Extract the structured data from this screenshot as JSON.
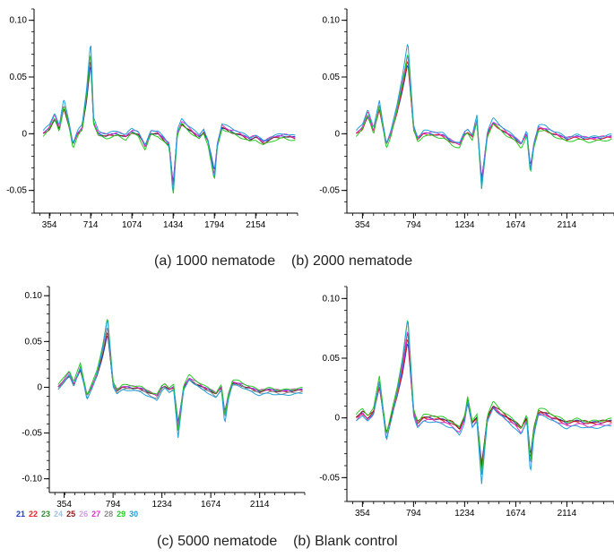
{
  "captions": {
    "top": "(a) 1000 nematode    (b) 2000 nematode",
    "bottom": "(c) 5000 nematode    (b) Blank control"
  },
  "legend": [
    {
      "label": "21",
      "color": "#1f3ccf"
    },
    {
      "label": "22",
      "color": "#e8222a"
    },
    {
      "label": "23",
      "color": "#2e8b2e"
    },
    {
      "label": "24",
      "color": "#9ec4e6"
    },
    {
      "label": "25",
      "color": "#8b1a1a"
    },
    {
      "label": "26",
      "color": "#d0a0e0"
    },
    {
      "label": "27",
      "color": "#e030d0"
    },
    {
      "label": "28",
      "color": "#8c8c8c"
    },
    {
      "label": "29",
      "color": "#22cc22"
    },
    {
      "label": "30",
      "color": "#20a0d8"
    }
  ],
  "chart_data": [
    {
      "type": "line",
      "panel": "a",
      "x_range": [
        220,
        2520
      ],
      "ylim": [
        -0.07,
        0.11
      ],
      "x_ticks": [
        "354",
        "714",
        "1074",
        "1434",
        "1794",
        "2154"
      ],
      "y_ticks": [
        "0.10",
        "0.05",
        "0",
        "-0.05"
      ],
      "y_tick_values": [
        0.1,
        0.05,
        0,
        -0.05
      ],
      "peaks": {
        "x": [
          300,
          354,
          400,
          440,
          480,
          520,
          560,
          600,
          640,
          680,
          714,
          740,
          780,
          850,
          950,
          1020,
          1074,
          1130,
          1190,
          1240,
          1300,
          1350,
          1400,
          1434,
          1470,
          1510,
          1560,
          1620,
          1660,
          1700,
          1740,
          1794,
          1820,
          1860,
          1920,
          2000,
          2100,
          2154,
          2220,
          2300,
          2400,
          2500
        ],
        "y": [
          0.0,
          0.005,
          0.015,
          0.004,
          0.025,
          0.01,
          -0.01,
          0.0,
          0.005,
          0.035,
          0.072,
          0.01,
          0.0,
          -0.002,
          0.0,
          -0.003,
          0.002,
          0.0,
          -0.012,
          0.001,
          0.0,
          -0.005,
          -0.01,
          -0.05,
          0.0,
          0.01,
          0.005,
          0.0,
          -0.003,
          0.002,
          -0.008,
          -0.038,
          -0.01,
          0.006,
          0.003,
          0.0,
          -0.005,
          -0.003,
          -0.008,
          -0.004,
          -0.002,
          -0.004
        ]
      },
      "series": [
        {
          "label": "21",
          "color": "#1f3ccf"
        },
        {
          "label": "25",
          "color": "#8b1a1a"
        },
        {
          "label": "27",
          "color": "#e030d0"
        },
        {
          "label": "29",
          "color": "#22cc22"
        },
        {
          "label": "30",
          "color": "#20a0d8"
        }
      ]
    },
    {
      "type": "line",
      "panel": "b",
      "x_range": [
        220,
        2520
      ],
      "ylim": [
        -0.07,
        0.11
      ],
      "x_ticks": [
        "354",
        "794",
        "1234",
        "1674",
        "2114"
      ],
      "y_ticks": [
        "0.10",
        "0.05",
        "0",
        "-0.05"
      ],
      "y_tick_values": [
        0.1,
        0.05,
        0,
        -0.05
      ],
      "peaks": {
        "x": [
          300,
          354,
          400,
          450,
          500,
          560,
          600,
          650,
          700,
          745,
          794,
          830,
          880,
          950,
          1050,
          1130,
          1190,
          1234,
          1260,
          1300,
          1340,
          1380,
          1430,
          1480,
          1540,
          1600,
          1674,
          1720,
          1770,
          1800,
          1830,
          1870,
          1930,
          2000,
          2114,
          2200,
          2300,
          2420,
          2500
        ],
        "y": [
          0.0,
          0.005,
          0.018,
          0.002,
          0.024,
          -0.01,
          0.0,
          0.02,
          0.045,
          0.07,
          0.005,
          -0.005,
          0.0,
          0.0,
          -0.002,
          -0.008,
          -0.01,
          0.0,
          0.002,
          -0.003,
          0.012,
          -0.045,
          0.0,
          0.01,
          0.005,
          0.0,
          -0.005,
          -0.01,
          0.0,
          -0.033,
          -0.01,
          0.005,
          0.004,
          0.0,
          -0.005,
          -0.003,
          -0.005,
          -0.004,
          -0.003
        ]
      },
      "series": [
        {
          "label": "21",
          "color": "#1f3ccf"
        },
        {
          "label": "22",
          "color": "#e8222a"
        },
        {
          "label": "27",
          "color": "#e030d0"
        },
        {
          "label": "29",
          "color": "#22cc22"
        },
        {
          "label": "30",
          "color": "#20a0d8"
        }
      ]
    },
    {
      "type": "line",
      "panel": "c",
      "x_range": [
        220,
        2520
      ],
      "ylim": [
        -0.115,
        0.11
      ],
      "x_ticks": [
        "354",
        "794",
        "1234",
        "1674",
        "2114"
      ],
      "y_ticks": [
        "0.10",
        "0.05",
        "0",
        "-0.05",
        "-0.10"
      ],
      "y_tick_values": [
        0.1,
        0.05,
        0,
        -0.05,
        -0.1
      ],
      "peaks": {
        "x": [
          300,
          354,
          400,
          440,
          500,
          560,
          600,
          650,
          700,
          745,
          794,
          830,
          880,
          950,
          1050,
          1130,
          1190,
          1234,
          1260,
          1300,
          1340,
          1380,
          1430,
          1480,
          1540,
          1600,
          1674,
          1720,
          1770,
          1800,
          1830,
          1870,
          1930,
          2000,
          2114,
          2200,
          2300,
          2420,
          2500
        ],
        "y": [
          0.0,
          0.008,
          0.015,
          0.003,
          0.022,
          -0.01,
          0.0,
          0.015,
          0.04,
          0.068,
          0.004,
          -0.004,
          0.0,
          0.0,
          -0.002,
          -0.007,
          -0.01,
          0.0,
          0.002,
          -0.003,
          0.0,
          -0.045,
          0.0,
          0.01,
          0.005,
          0.0,
          -0.004,
          -0.008,
          0.0,
          -0.032,
          -0.01,
          0.005,
          0.004,
          0.0,
          -0.005,
          -0.003,
          -0.005,
          -0.004,
          -0.003
        ]
      },
      "series": [
        {
          "label": "21",
          "color": "#1f3ccf"
        },
        {
          "label": "25",
          "color": "#8b1a1a"
        },
        {
          "label": "27",
          "color": "#e030d0"
        },
        {
          "label": "28",
          "color": "#8c8c8c"
        },
        {
          "label": "29",
          "color": "#22cc22"
        },
        {
          "label": "30",
          "color": "#20a0d8"
        }
      ]
    },
    {
      "type": "line",
      "panel": "d",
      "x_range": [
        220,
        2520
      ],
      "ylim": [
        -0.07,
        0.11
      ],
      "x_ticks": [
        "354",
        "794",
        "1234",
        "1674",
        "2114"
      ],
      "y_ticks": [
        "0.10",
        "0.05",
        "0",
        "-0.05"
      ],
      "y_tick_values": [
        0.1,
        0.05,
        0,
        -0.05
      ],
      "peaks": {
        "x": [
          300,
          354,
          400,
          450,
          500,
          560,
          600,
          650,
          700,
          745,
          794,
          830,
          880,
          950,
          1050,
          1130,
          1190,
          1234,
          1260,
          1300,
          1340,
          1380,
          1430,
          1480,
          1540,
          1600,
          1674,
          1720,
          1770,
          1800,
          1830,
          1870,
          1930,
          2000,
          2114,
          2200,
          2300,
          2420,
          2500
        ],
        "y": [
          0.0,
          0.005,
          0.0,
          0.005,
          0.03,
          -0.015,
          0.0,
          0.02,
          0.045,
          0.075,
          0.005,
          -0.005,
          0.0,
          0.0,
          -0.002,
          -0.005,
          -0.01,
          0.0,
          0.015,
          -0.005,
          0.0,
          -0.045,
          0.0,
          0.01,
          0.005,
          0.0,
          -0.005,
          -0.01,
          0.0,
          -0.038,
          -0.01,
          0.005,
          0.004,
          0.0,
          -0.005,
          -0.003,
          -0.005,
          -0.004,
          -0.003
        ]
      },
      "series": [
        {
          "label": "21",
          "color": "#1f3ccf"
        },
        {
          "label": "22",
          "color": "#e8222a"
        },
        {
          "label": "25",
          "color": "#8b1a1a"
        },
        {
          "label": "27",
          "color": "#e030d0"
        },
        {
          "label": "29",
          "color": "#22cc22"
        },
        {
          "label": "30",
          "color": "#20a0d8"
        }
      ]
    }
  ]
}
